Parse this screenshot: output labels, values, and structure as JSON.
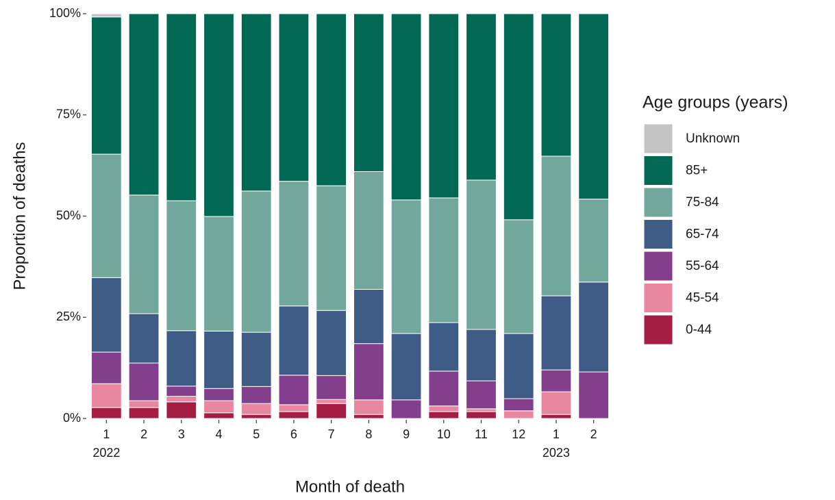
{
  "chart_data": {
    "type": "stacked-bar",
    "categories": [
      "1",
      "2",
      "3",
      "4",
      "5",
      "6",
      "7",
      "8",
      "9",
      "10",
      "11",
      "12",
      "1",
      "2"
    ],
    "year_labels": [
      "2022",
      null,
      null,
      null,
      null,
      null,
      null,
      null,
      null,
      null,
      null,
      null,
      "2023",
      null
    ],
    "x_label": "Month of death",
    "y_label": "Proportion of deaths",
    "legend_title": "Age groups (years)",
    "legend": "right",
    "ylim": [
      0,
      100
    ],
    "yticks": [
      {
        "value": 0,
        "label": "0%"
      },
      {
        "value": 25,
        "label": "25%"
      },
      {
        "value": 50,
        "label": "50%"
      },
      {
        "value": 75,
        "label": "75%"
      },
      {
        "value": 100,
        "label": "100%"
      }
    ],
    "series": [
      {
        "name": "0-44",
        "color": "#a51d42",
        "values": [
          2.7,
          2.7,
          4.1,
          1.4,
          1.0,
          1.7,
          3.7,
          1.0,
          0,
          1.7,
          1.7,
          0,
          1.0,
          0
        ]
      },
      {
        "name": "45-54",
        "color": "#e8879f",
        "values": [
          5.9,
          1.7,
          1.4,
          3.0,
          2.7,
          1.7,
          1.0,
          3.6,
          0,
          1.4,
          0.7,
          1.9,
          5.6,
          0
        ]
      },
      {
        "name": "55-64",
        "color": "#833e8c",
        "values": [
          7.8,
          9.3,
          2.5,
          3.0,
          4.2,
          7.3,
          5.9,
          13.9,
          4.6,
          8.6,
          6.9,
          3.0,
          5.4,
          11.5
        ]
      },
      {
        "name": "65-74",
        "color": "#3e5c85",
        "values": [
          18.4,
          12.2,
          13.7,
          14.2,
          13.4,
          17.1,
          16.1,
          13.4,
          16.4,
          12.0,
          12.7,
          16.1,
          18.3,
          22.2
        ]
      },
      {
        "name": "75-84",
        "color": "#71a89b",
        "values": [
          30.5,
          29.3,
          32.1,
          28.3,
          34.9,
          30.8,
          30.8,
          29.1,
          33.0,
          30.8,
          36.9,
          28.1,
          34.5,
          20.5
        ]
      },
      {
        "name": "85+",
        "color": "#006853",
        "values": [
          33.9,
          44.8,
          46.2,
          50.1,
          43.8,
          41.4,
          42.5,
          39.0,
          46.0,
          45.5,
          41.1,
          50.9,
          35.2,
          45.8
        ]
      },
      {
        "name": "Unknown",
        "color": "#c4c4c4",
        "values": [
          0.8,
          0,
          0,
          0,
          0,
          0,
          0,
          0,
          0,
          0,
          0,
          0,
          0,
          0
        ]
      }
    ]
  }
}
